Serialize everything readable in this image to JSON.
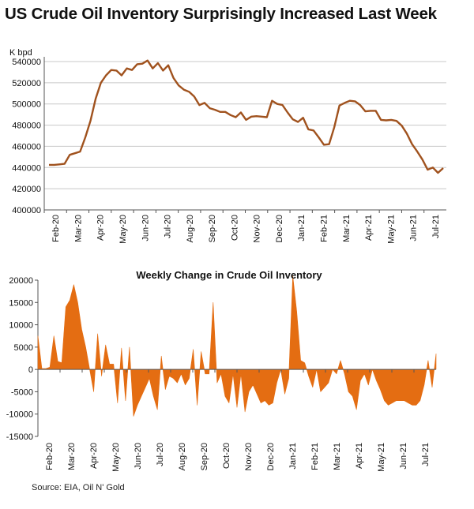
{
  "title": "US Crude Oil Inventory Surprisingly Increased Last Week",
  "source": "Source: EIA, Oil N' Gold",
  "colors": {
    "line": "#a0521e",
    "area": "#e46d12",
    "grid": "#c8c8c8",
    "axis": "#555555"
  },
  "chart_data": [
    {
      "type": "line",
      "title": "",
      "unit_label": "K bpd",
      "ylim": [
        400000,
        540000
      ],
      "yticks": [
        400000,
        420000,
        440000,
        460000,
        480000,
        500000,
        520000,
        540000
      ],
      "ytick_labels": [
        "400000",
        "420000",
        "440000",
        "460000",
        "480000",
        "500000",
        "520000",
        "540000"
      ],
      "xlabels": [
        "Feb-20",
        "Mar-20",
        "Apr-20",
        "May-20",
        "Jun-20",
        "Jul-20",
        "Aug-20",
        "Sep-20",
        "Oct-20",
        "Nov-20",
        "Dec-20",
        "Jan-21",
        "Feb-21",
        "Mar-21",
        "Apr-21",
        "May-21",
        "Jun-21",
        "Jul-21"
      ],
      "series": [
        {
          "name": "US Crude Oil Inventory",
          "values": [
            442500,
            442500,
            443000,
            443500,
            452000,
            453500,
            455000,
            468500,
            484000,
            505000,
            520000,
            527000,
            532000,
            531500,
            527000,
            533500,
            532000,
            537500,
            538000,
            541000,
            533500,
            538500,
            531500,
            536500,
            524500,
            517500,
            513500,
            511500,
            507000,
            499000,
            501000,
            496000,
            494500,
            492500,
            492500,
            489500,
            487500,
            492000,
            485000,
            488000,
            488500,
            488000,
            487500,
            503000,
            500000,
            499000,
            492000,
            485500,
            483000,
            487000,
            476000,
            475000,
            468500,
            461500,
            462000,
            478000,
            498500,
            501000,
            503000,
            502500,
            499000,
            493000,
            493500,
            493500,
            485000,
            484500,
            485000,
            484000,
            479500,
            472000,
            462000,
            455000,
            447500,
            438000,
            440000,
            435000,
            439500
          ]
        }
      ]
    },
    {
      "type": "area",
      "title": "Weekly Change in Crude Oil Inventory",
      "ylim": [
        -15000,
        20000
      ],
      "yticks": [
        -15000,
        -10000,
        -5000,
        0,
        5000,
        10000,
        15000,
        20000
      ],
      "ytick_labels": [
        "-15000",
        "-10000",
        "-5000",
        "0",
        "5000",
        "10000",
        "15000",
        "20000"
      ],
      "xlabels": [
        "Feb-20",
        "Mar-20",
        "Apr-20",
        "May-20",
        "Jun-20",
        "Jul-20",
        "Aug-20",
        "Sep-20",
        "Oct-20",
        "Nov-20",
        "Dec-20",
        "Jan-21",
        "Feb-21",
        "Mar-21",
        "Apr-21",
        "May-21",
        "Jun-21",
        "Jul-21"
      ],
      "series": [
        {
          "name": "Weekly Change",
          "values": [
            7500,
            200,
            200,
            500,
            7500,
            1800,
            1500,
            14000,
            15500,
            19000,
            15000,
            9000,
            5000,
            0,
            -5000,
            8000,
            -1500,
            5500,
            1200,
            1200,
            -7500,
            4800,
            -7000,
            5000,
            -10500,
            -8000,
            -6000,
            -4000,
            -2000,
            -6000,
            -9000,
            3000,
            -4500,
            -1500,
            -2000,
            -3000,
            -1000,
            -3500,
            -2000,
            4500,
            -8000,
            4000,
            -1000,
            -1000,
            15000,
            -3000,
            -1000,
            -6000,
            -7500,
            -1000,
            -8500,
            -1000,
            -9500,
            -5000,
            -3500,
            -5500,
            -7500,
            -7000,
            -8000,
            -7500,
            -3000,
            0,
            -5500,
            -2000,
            21000,
            13000,
            2000,
            1500,
            -1500,
            -4000,
            0,
            -5000,
            -4000,
            -3000,
            0,
            -1000,
            2000,
            -1000,
            -5000,
            -6000,
            -9000,
            -2500,
            -1000,
            -3500,
            0,
            -2500,
            -4500,
            -7000,
            -8000,
            -7500,
            -7000,
            -7000,
            -7000,
            -7500,
            -8000,
            -8000,
            -7000,
            -3500,
            2000,
            -4000,
            3500
          ]
        }
      ]
    }
  ]
}
